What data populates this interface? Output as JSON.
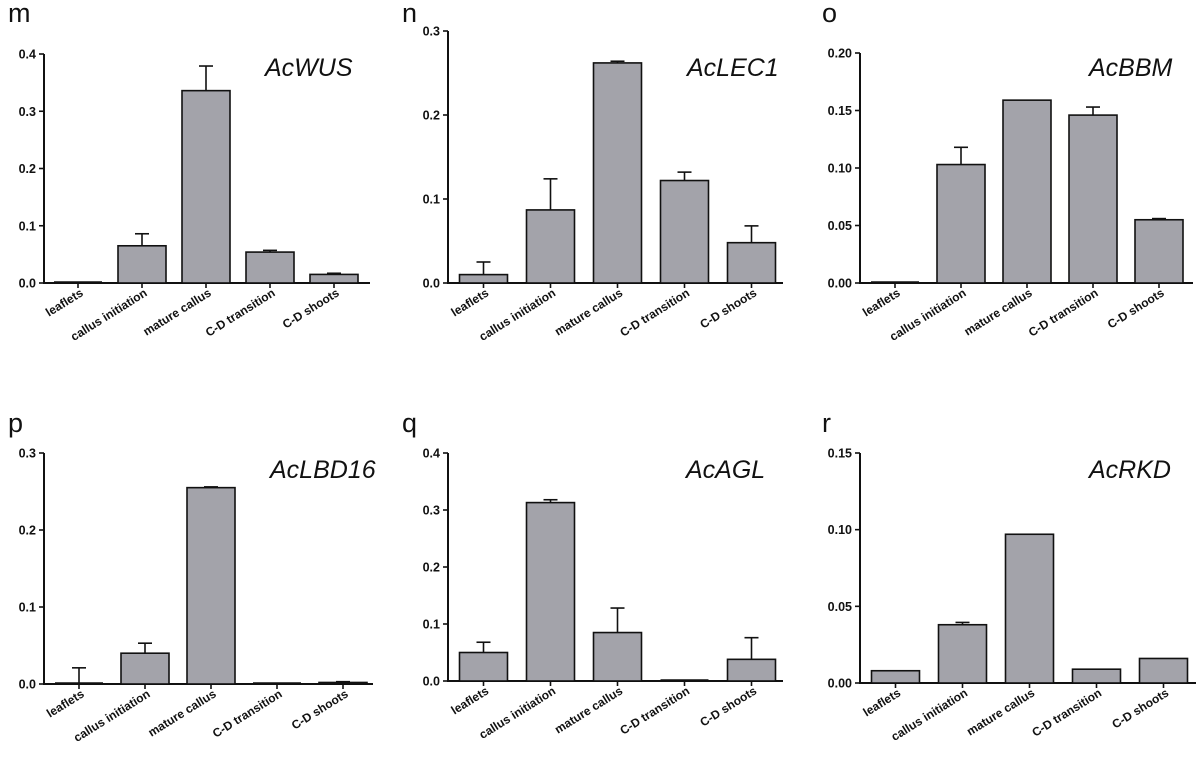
{
  "chart_data": [
    {
      "panel": "m",
      "type": "bar",
      "title": "AcWUS",
      "categories": [
        "leaflets",
        "callus initiation",
        "mature callus",
        "C-D transition",
        "C-D shoots"
      ],
      "values": [
        0.0,
        0.065,
        0.336,
        0.054,
        0.015
      ],
      "errors": [
        0.0,
        0.021,
        0.043,
        0.003,
        0.002
      ],
      "ylim": [
        0,
        0.4
      ],
      "yticks": [
        "0.0",
        "0.1",
        "0.2",
        "0.3",
        "0.4"
      ]
    },
    {
      "panel": "n",
      "type": "bar",
      "title": "AcLEC1",
      "categories": [
        "leaflets",
        "callus initiation",
        "mature callus",
        "C-D transition",
        "C-D shoots"
      ],
      "values": [
        0.01,
        0.087,
        0.262,
        0.122,
        0.048
      ],
      "errors": [
        0.015,
        0.037,
        0.002,
        0.01,
        0.02
      ],
      "ylim": [
        0,
        0.3
      ],
      "yticks": [
        "0.0",
        "0.1",
        "0.2",
        "0.3"
      ]
    },
    {
      "panel": "o",
      "type": "bar",
      "title": "AcBBM",
      "categories": [
        "leaflets",
        "callus initiation",
        "mature callus",
        "C-D transition",
        "C-D shoots"
      ],
      "values": [
        0.0,
        0.103,
        0.159,
        0.146,
        0.055
      ],
      "errors": [
        0.0,
        0.015,
        0.0,
        0.007,
        0.001
      ],
      "ylim": [
        0,
        0.2
      ],
      "yticks": [
        "0.00",
        "0.05",
        "0.10",
        "0.15",
        "0.20"
      ]
    },
    {
      "panel": "p",
      "type": "bar",
      "title": "AcLBD16",
      "categories": [
        "leaflets",
        "callus initiation",
        "mature callus",
        "C-D transition",
        "C-D shoots"
      ],
      "values": [
        0.0,
        0.04,
        0.255,
        0.0,
        0.002
      ],
      "errors": [
        0.021,
        0.013,
        0.001,
        0.0,
        0.001
      ],
      "ylim": [
        0,
        0.3
      ],
      "yticks": [
        "0.0",
        "0.1",
        "0.2",
        "0.3"
      ]
    },
    {
      "panel": "q",
      "type": "bar",
      "title": "AcAGL",
      "categories": [
        "leaflets",
        "callus initiation",
        "mature callus",
        "C-D transition",
        "C-D shoots"
      ],
      "values": [
        0.05,
        0.313,
        0.085,
        0.0,
        0.038
      ],
      "errors": [
        0.018,
        0.005,
        0.043,
        0.0,
        0.038
      ],
      "ylim": [
        0,
        0.4
      ],
      "yticks": [
        "0.0",
        "0.1",
        "0.2",
        "0.3",
        "0.4"
      ]
    },
    {
      "panel": "r",
      "type": "bar",
      "title": "AcRKD",
      "categories": [
        "leaflets",
        "callus initiation",
        "mature callus",
        "C-D transition",
        "C-D shoots"
      ],
      "values": [
        0.008,
        0.038,
        0.097,
        0.009,
        0.016
      ],
      "errors": [
        0.0,
        0.0015,
        0.0,
        0.0,
        0.0
      ],
      "ylim": [
        0,
        0.15
      ],
      "yticks": [
        "0.00",
        "0.05",
        "0.10",
        "0.15"
      ]
    }
  ],
  "colors": {
    "bar_fill": "#a3a3aa",
    "bar_stroke": "#111111"
  }
}
